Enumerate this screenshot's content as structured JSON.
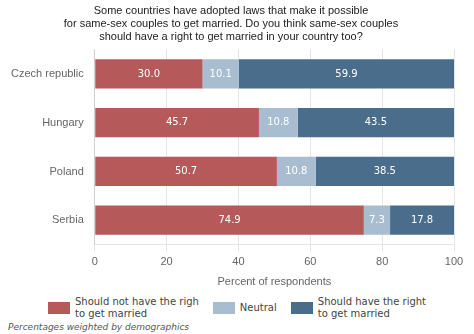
{
  "chart_data": {
    "type": "bar",
    "orientation": "horizontal",
    "stacked": true,
    "title": "Some countries have adopted laws that make it possible\nfor same-sex couples to get married. Do you think same-sex couples\nshould have a right to get married in your country too?",
    "x_label": "Percent of respondents",
    "footnote": "Percentages weighted by demographics",
    "categories": [
      "Serbia",
      "Poland",
      "Hungary",
      "Czech republic"
    ],
    "series": [
      {
        "name": "Should not have the righ\nto get married",
        "color": "#b5595a",
        "values": [
          74.9,
          50.7,
          45.7,
          30.0
        ],
        "value_labels": [
          "74.9",
          "50.7",
          "45.7",
          "30.0"
        ]
      },
      {
        "name": "Neutral",
        "color": "#a8bdd0",
        "values": [
          7.3,
          10.8,
          10.8,
          10.1
        ],
        "value_labels": [
          "7.3",
          "10.8",
          "10.8",
          "10.1"
        ]
      },
      {
        "name": "Should have the right\nto get married",
        "color": "#4a6d8c",
        "values": [
          17.8,
          38.5,
          43.5,
          59.9
        ],
        "value_labels": [
          "17.8",
          "38.5",
          "43.5",
          "59.9"
        ]
      }
    ],
    "xlim": [
      0,
      100
    ],
    "xticks": [
      0,
      20,
      40,
      60,
      80,
      100
    ],
    "grid": true,
    "data_labels": true,
    "legend": "bottom"
  }
}
